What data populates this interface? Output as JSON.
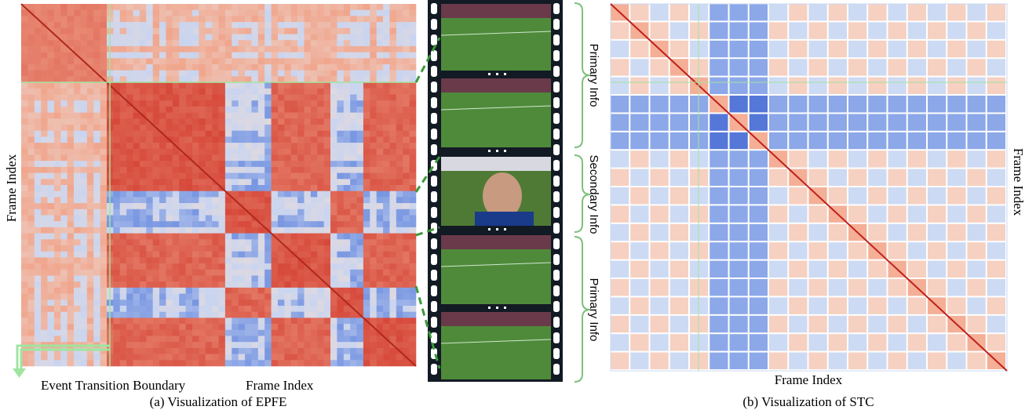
{
  "left_panel": {
    "y_label": "Frame Index",
    "legend_label": "Event Transition Boundary",
    "x_label": "Frame Index",
    "caption": "(a) Visualization of EPFE"
  },
  "film_strip": {
    "labels": [
      "Primary Info",
      "Secondary Info",
      "Primary Info"
    ]
  },
  "right_panel": {
    "y_label": "Frame Index",
    "x_label": "Frame Index",
    "caption": "(b) Visualization of STC"
  }
}
